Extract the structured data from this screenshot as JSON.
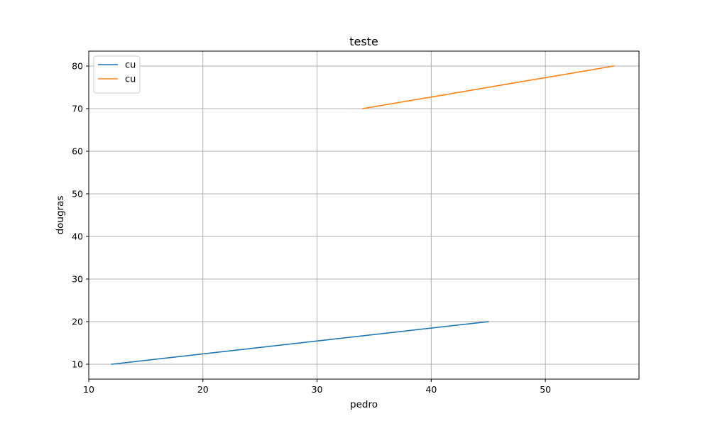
{
  "chart_data": {
    "type": "line",
    "title": "teste",
    "xlabel": "pedro",
    "ylabel": "dougras",
    "xlim": [
      10,
      58.2
    ],
    "ylim": [
      6.5,
      83.5
    ],
    "xticks": [
      10,
      20,
      30,
      40,
      50
    ],
    "yticks": [
      10,
      20,
      30,
      40,
      50,
      60,
      70,
      80
    ],
    "grid": true,
    "legend_position": "top-left",
    "series": [
      {
        "name": "cu",
        "color": "#1f77b4",
        "x": [
          12,
          45
        ],
        "y": [
          10,
          20
        ]
      },
      {
        "name": "cu",
        "color": "#ff7f0e",
        "x": [
          34,
          56
        ],
        "y": [
          70,
          80
        ]
      }
    ]
  }
}
